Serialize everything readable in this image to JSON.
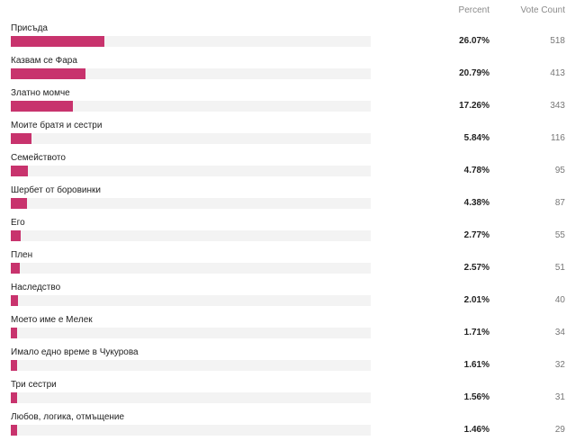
{
  "header": {
    "percent_label": "Percent",
    "votes_label": "Vote Count"
  },
  "accent_color": "#c8336d",
  "chart_data": {
    "type": "bar",
    "categories": [
      "Присъда",
      "Казвам се Фара",
      "Златно момче",
      "Моите братя и сестри",
      "Семейството",
      "Шербет от боровинки",
      "Его",
      "Плен",
      "Наследство",
      "Моето име е Мелек",
      "Имало едно време в Чукурова",
      "Три сестри",
      "Любов, логика, отмъщение"
    ],
    "percent_labels": [
      "26.07%",
      "20.79%",
      "17.26%",
      "5.84%",
      "4.78%",
      "4.38%",
      "2.77%",
      "2.57%",
      "2.01%",
      "1.71%",
      "1.61%",
      "1.56%",
      "1.46%"
    ],
    "percents": [
      26.07,
      20.79,
      17.26,
      5.84,
      4.78,
      4.38,
      2.77,
      2.57,
      2.01,
      1.71,
      1.61,
      1.56,
      1.46
    ],
    "votes": [
      "518",
      "413",
      "343",
      "116",
      "95",
      "87",
      "55",
      "51",
      "40",
      "34",
      "32",
      "31",
      "29"
    ]
  }
}
